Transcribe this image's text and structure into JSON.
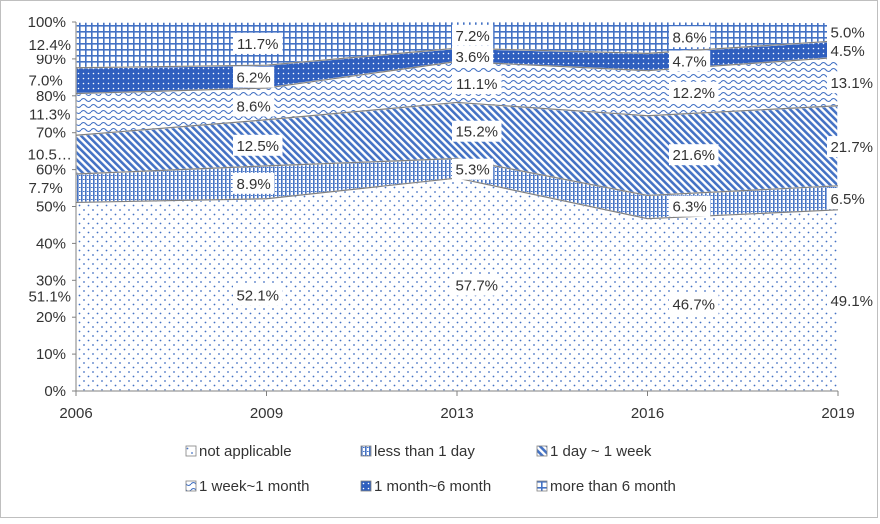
{
  "chart_data": {
    "type": "area",
    "stacked": true,
    "percent": true,
    "title": "",
    "xlabel": "",
    "ylabel": "",
    "x": [
      "2006",
      "2009",
      "2013",
      "2016",
      "2019"
    ],
    "ylim": [
      0,
      100
    ],
    "y_ticks": [
      "0%",
      "10%",
      "20%",
      "30%",
      "40%",
      "50%",
      "60%",
      "70%",
      "80%",
      "90%",
      "100%"
    ],
    "grid": false,
    "legend_position": "bottom",
    "series": [
      {
        "name": "not applicable",
        "values": [
          51.1,
          52.1,
          57.7,
          46.7,
          49.1
        ],
        "labels": [
          "51.1%",
          "52.1%",
          "57.7%",
          "46.7%",
          "49.1%"
        ],
        "pattern": "dots",
        "color": "#4472c4"
      },
      {
        "name": "less than 1 day",
        "values": [
          7.7,
          8.9,
          5.3,
          6.3,
          6.5
        ],
        "labels": [
          "7.7%",
          "8.9%",
          "5.3%",
          "6.3%",
          "6.5%"
        ],
        "pattern": "vertical",
        "color": "#4472c4"
      },
      {
        "name": "1 day ~ 1 week",
        "values": [
          10.5,
          12.5,
          15.2,
          21.6,
          21.7
        ],
        "labels": [
          "10.5…",
          "12.5%",
          "15.2%",
          "21.6%",
          "21.7%"
        ],
        "pattern": "diagonal",
        "color": "#4472c4"
      },
      {
        "name": "1 week~1 month",
        "values": [
          11.3,
          8.6,
          11.1,
          12.2,
          13.1
        ],
        "labels": [
          "11.3%",
          "8.6%",
          "11.1%",
          "12.2%",
          "13.1%"
        ],
        "pattern": "wave",
        "color": "#4472c4"
      },
      {
        "name": "1 month~6 month",
        "values": [
          7.0,
          6.2,
          3.6,
          4.7,
          4.5
        ],
        "labels": [
          "7.0%",
          "6.2%",
          "3.6%",
          "4.7%",
          "4.5%"
        ],
        "pattern": "solid-dots",
        "color": "#2f5fbf"
      },
      {
        "name": "more than 6 month",
        "values": [
          12.4,
          11.7,
          7.2,
          8.6,
          5.0
        ],
        "labels": [
          "12.4%",
          "11.7%",
          "7.2%",
          "8.6%",
          "5.0%"
        ],
        "pattern": "grid",
        "color": "#4472c4"
      }
    ]
  }
}
